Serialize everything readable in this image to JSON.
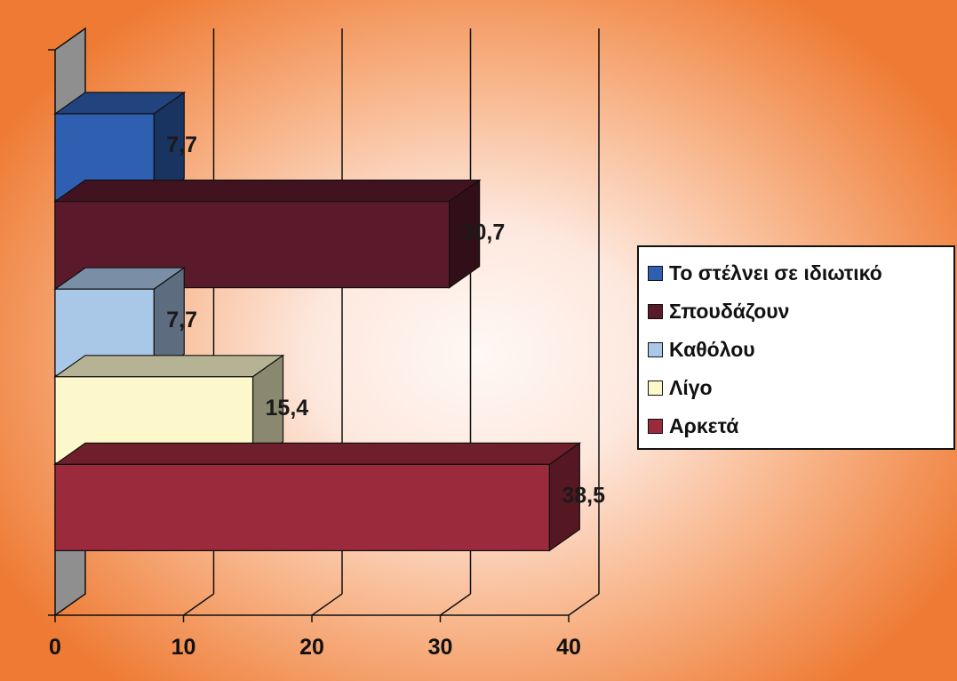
{
  "chart_data": {
    "type": "bar",
    "orientation": "horizontal",
    "style": "3d",
    "series": [
      {
        "name": "Το στέλνει σε ιδιωτικό",
        "value": 7.7,
        "label": "7,7",
        "color": "#2e5fb0"
      },
      {
        "name": "Σπουδάζουν",
        "value": 30.7,
        "label": "30,7",
        "color": "#5a1a2c"
      },
      {
        "name": "Καθόλου",
        "value": 7.7,
        "label": "7,7",
        "color": "#a9c7e6"
      },
      {
        "name": "Λίγο",
        "value": 15.4,
        "label": "15,4",
        "color": "#fcf8cc"
      },
      {
        "name": "Αρκετά",
        "value": 38.5,
        "label": "38,5",
        "color": "#9a2a3c"
      }
    ],
    "xlim": [
      0,
      40
    ],
    "x_ticks": [
      "0",
      "10",
      "20",
      "30",
      "40"
    ],
    "grid": true,
    "legend_position": "right",
    "title": "",
    "xlabel": "",
    "ylabel": ""
  }
}
